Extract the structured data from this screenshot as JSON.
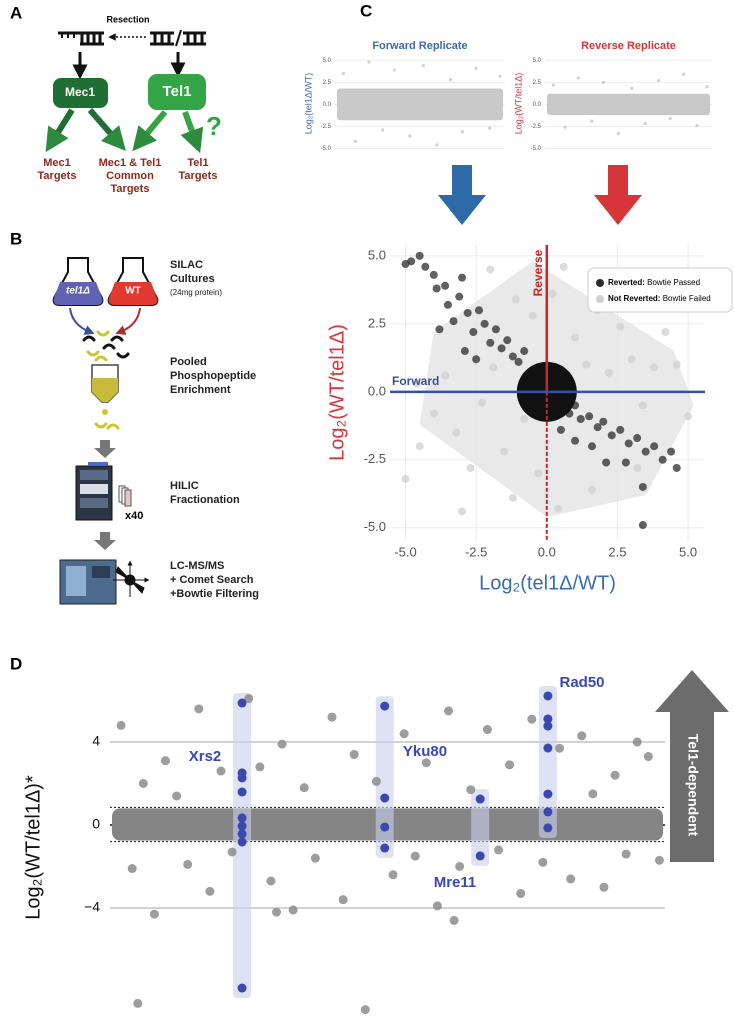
{
  "panel_a": {
    "label": "A",
    "resection": "Resection",
    "mec1": "Mec1",
    "tel1": "Tel1",
    "question": "?",
    "mec1_targets": [
      "Mec1",
      "Targets"
    ],
    "common_targets": [
      "Mec1 & Tel1",
      "Common",
      "Targets"
    ],
    "tel1_targets": [
      "Tel1",
      "Targets"
    ]
  },
  "panel_b": {
    "label": "B",
    "strain_mutant": "tel1Δ",
    "strain_wt": "WT",
    "silac": [
      "SILAC",
      "Cultures"
    ],
    "silac_note": "(24mg protein)",
    "enrichment": [
      "Pooled",
      "Phosphopeptide",
      "Enrichment"
    ],
    "hilic": [
      "HILIC",
      "Fractionation"
    ],
    "fractions": "x40",
    "ms": [
      "LC-MS/MS",
      "+ Comet Search",
      "+Bowtie Filtering"
    ]
  },
  "panel_c": {
    "label": "C"
  },
  "panel_d": {
    "label": "D",
    "arrow_label": "Tel1-dependent"
  },
  "chart_data": [
    {
      "type": "scatter",
      "title": "Forward Replicate",
      "title_color": "#3b6ea8",
      "ylabel": "Log₂(tel1Δ/WT)",
      "ylabel_color": "#3b6ea8",
      "xlim": [
        0,
        100
      ],
      "ylim": [
        -5.4,
        5.6
      ],
      "yticks": [
        {
          "value": 5,
          "label": "5.0"
        },
        {
          "value": 2.5,
          "label": "2.5"
        },
        {
          "value": 0,
          "label": "0.0"
        },
        {
          "value": -2.5,
          "label": "-2.5"
        },
        {
          "value": -5,
          "label": "-5.0"
        }
      ],
      "grid": true,
      "core_range": [
        -1.8,
        1.8
      ],
      "series": [
        {
          "color": "#c4c4c4",
          "x": [
            5,
            12,
            20,
            28,
            35,
            44,
            52,
            60,
            68,
            75,
            83,
            91,
            97
          ],
          "values": [
            3.5,
            -4.2,
            4.8,
            -2.9,
            3.9,
            -3.6,
            4.4,
            -4.6,
            2.8,
            -3.1,
            4.1,
            -2.7,
            3.2
          ]
        }
      ]
    },
    {
      "type": "scatter",
      "title": "Reverse Replicate",
      "title_color": "#d6353a",
      "ylabel": "Log₂(WT/tel1Δ)",
      "ylabel_color": "#d6353a",
      "xlim": [
        0,
        100
      ],
      "ylim": [
        -5.4,
        5.6
      ],
      "yticks": [
        {
          "value": 5,
          "label": "5.0"
        },
        {
          "value": 2.5,
          "label": "2.5"
        },
        {
          "value": 0,
          "label": "0.0"
        },
        {
          "value": -2.5,
          "label": "-2.5"
        },
        {
          "value": -5,
          "label": "-5.0"
        }
      ],
      "grid": true,
      "core_range": [
        -1.2,
        1.2
      ],
      "series": [
        {
          "color": "#c4c4c4",
          "x": [
            5,
            12,
            20,
            28,
            35,
            44,
            52,
            60,
            68,
            75,
            83,
            91,
            97
          ],
          "values": [
            2.2,
            -2.6,
            3.0,
            -1.9,
            2.5,
            -3.3,
            1.8,
            -2.2,
            2.7,
            -1.6,
            3.4,
            -2.4,
            2.0
          ]
        }
      ]
    },
    {
      "type": "scatter",
      "xlabel": "Log₂(tel1Δ/WT)",
      "xlabel_color": "#3b6ea8",
      "ylabel": "Log₂(WT/tel1Δ)",
      "ylabel_color": "#d6353a",
      "forward_label": "Forward",
      "reverse_label": "Reverse",
      "xlim": [
        -5.55,
        5.6
      ],
      "ylim": [
        -5.45,
        5.4
      ],
      "xticks": [
        {
          "value": -5,
          "label": "-5.0"
        },
        {
          "value": -2.5,
          "label": "-2.5"
        },
        {
          "value": 0,
          "label": "0.0"
        },
        {
          "value": 2.5,
          "label": "2.5"
        },
        {
          "value": 5,
          "label": "5.0"
        }
      ],
      "yticks": [
        {
          "value": 5,
          "label": "5.0"
        },
        {
          "value": 2.5,
          "label": "2.5"
        },
        {
          "value": 0,
          "label": "0.0"
        },
        {
          "value": -2.5,
          "label": "-2.5"
        },
        {
          "value": -5,
          "label": "-5.0"
        }
      ],
      "grid": true,
      "series": [
        {
          "name": "Not Reverted:",
          "description": "Bowtie Failed",
          "color": "#cfcfcf",
          "x": [
            -5.0,
            -4.5,
            -4.0,
            -3.6,
            -3.2,
            -2.7,
            -2.3,
            -1.9,
            -1.5,
            -1.2,
            -0.8,
            -0.5,
            0.2,
            0.6,
            1.0,
            1.4,
            1.8,
            2.2,
            2.6,
            3.0,
            3.4,
            3.8,
            4.2,
            4.6,
            5.0,
            -0.3,
            0.4,
            -2.0,
            -4.6,
            4.8,
            2.4,
            -3.0,
            1.6,
            -1.1,
            3.2
          ],
          "values": [
            -3.2,
            -2.0,
            -0.8,
            0.6,
            -1.5,
            -2.8,
            -0.4,
            0.9,
            -2.2,
            -3.9,
            -1.0,
            2.8,
            3.6,
            4.6,
            2.0,
            1.0,
            3.0,
            0.7,
            2.4,
            1.2,
            -0.5,
            0.9,
            2.2,
            1.0,
            -0.9,
            -3.0,
            -4.3,
            4.5,
            0.3,
            3.6,
            4.2,
            -4.4,
            -3.6,
            3.4,
            -2.8
          ]
        },
        {
          "name": "Reverted:",
          "description": "Bowtie Passed",
          "color": "#2b2b2b",
          "x": [
            -5.0,
            -4.8,
            -4.5,
            -4.3,
            -4.0,
            -3.9,
            -3.6,
            -3.5,
            -3.3,
            -3.1,
            -3.0,
            -2.8,
            -2.6,
            -2.4,
            -2.2,
            -2.0,
            -1.8,
            -1.6,
            -1.4,
            -1.2,
            -1.0,
            -0.8,
            -3.8,
            -2.9,
            -2.5,
            0.8,
            1.0,
            1.2,
            1.5,
            1.8,
            2.0,
            2.3,
            2.6,
            2.9,
            3.2,
            3.5,
            3.8,
            4.1,
            4.4,
            4.6,
            3.4,
            3.4,
            2.8,
            1.6,
            2.1,
            1.0,
            0.5
          ],
          "values": [
            4.7,
            4.8,
            5.0,
            4.6,
            4.3,
            3.8,
            3.9,
            3.2,
            2.6,
            3.5,
            4.2,
            2.9,
            2.2,
            3.0,
            2.5,
            1.8,
            2.3,
            1.6,
            1.9,
            1.3,
            1.1,
            1.5,
            2.3,
            1.5,
            1.2,
            -0.8,
            -0.5,
            -1.0,
            -0.9,
            -1.3,
            -1.1,
            -1.6,
            -1.4,
            -1.9,
            -1.7,
            -2.2,
            -2.0,
            -2.5,
            -2.2,
            -2.8,
            -3.5,
            -4.9,
            -2.6,
            -2.0,
            -2.6,
            -1.8,
            -1.4
          ]
        }
      ]
    },
    {
      "type": "scatter",
      "ylabel": "Log₂(WT/tel1Δ)*",
      "ylabel_color": "#111111",
      "xlim": [
        0,
        100
      ],
      "ylim": [
        -9.4,
        7.23
      ],
      "yticks": [
        4,
        0,
        {
          "value": -4,
          "label": "−4"
        }
      ],
      "grid": true,
      "threshold_lines": [
        0.85,
        -0.8
      ],
      "core_range": [
        -0.75,
        0.8
      ],
      "series": [
        {
          "color": "#8c8c8c",
          "x": [
            2,
            4,
            6,
            8,
            10,
            12,
            14,
            16,
            18,
            20,
            22,
            25,
            27,
            29,
            31,
            33,
            35,
            37,
            40,
            42,
            44,
            46,
            48,
            51,
            53,
            55,
            57,
            59,
            61,
            63,
            65,
            68,
            70,
            72,
            74,
            76,
            78,
            81,
            83,
            85,
            87,
            89,
            91,
            93,
            95,
            97,
            99,
            5,
            30,
            62
          ],
          "values": [
            4.8,
            -2.1,
            2.0,
            -4.3,
            3.1,
            1.4,
            -1.9,
            5.6,
            -3.2,
            2.6,
            -1.3,
            6.1,
            2.8,
            -2.7,
            3.9,
            -4.1,
            1.8,
            -1.6,
            5.2,
            -3.6,
            3.4,
            -8.9,
            2.1,
            -2.4,
            4.4,
            -1.5,
            3.0,
            -3.9,
            5.5,
            -2.0,
            1.7,
            4.6,
            -1.2,
            2.9,
            -3.3,
            5.1,
            -1.8,
            3.7,
            -2.6,
            4.3,
            1.5,
            -3.0,
            2.4,
            -1.4,
            4.0,
            3.3,
            -1.7,
            -8.6,
            -4.2,
            -4.6
          ]
        },
        {
          "name": "Xrs2",
          "color": "#3a49b0",
          "x": [
            23.8,
            23.8,
            23.8,
            23.8,
            23.8,
            23.8,
            23.8,
            23.8,
            23.8
          ],
          "values": [
            5.88,
            2.51,
            2.27,
            1.59,
            0.34,
            -0.05,
            -0.43,
            -0.82,
            -7.86
          ]
        },
        {
          "name": "Yku80",
          "color": "#3a49b0",
          "x": [
            49.5,
            49.5,
            49.5,
            49.5
          ],
          "values": [
            5.73,
            1.3,
            -0.1,
            -1.11
          ]
        },
        {
          "name": "Mre11",
          "color": "#3a49b0",
          "x": [
            66.7,
            66.7
          ],
          "values": [
            1.25,
            -1.49
          ]
        },
        {
          "name": "Rad50",
          "color": "#3a49b0",
          "x": [
            78.9,
            78.9,
            78.9,
            78.9,
            78.9,
            78.9,
            78.9
          ],
          "values": [
            6.22,
            5.11,
            4.77,
            3.71,
            1.49,
            0.63,
            -0.14
          ]
        }
      ]
    }
  ]
}
